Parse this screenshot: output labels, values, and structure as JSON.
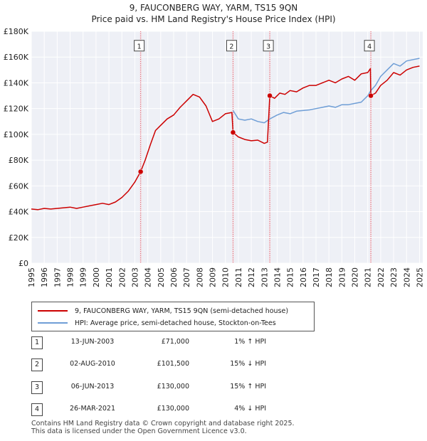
{
  "title_line1": "9, FAUCONBERG WAY, YARM, TS15 9QN",
  "title_line2": "Price paid vs. HM Land Registry's House Price Index (HPI)",
  "chart_data": {
    "type": "line",
    "title": "9, FAUCONBERG WAY, YARM, TS15 9QN — Price paid vs. HM Land Registry's House Price Index (HPI)",
    "xlabel": "",
    "ylabel": "",
    "xlim": [
      1995,
      2025.25
    ],
    "ylim": [
      0,
      180000
    ],
    "grid": true,
    "y_ticks": [
      {
        "value": 0,
        "label": "£0"
      },
      {
        "value": 20000,
        "label": "£20K"
      },
      {
        "value": 40000,
        "label": "£40K"
      },
      {
        "value": 60000,
        "label": "£60K"
      },
      {
        "value": 80000,
        "label": "£80K"
      },
      {
        "value": 100000,
        "label": "£100K"
      },
      {
        "value": 120000,
        "label": "£120K"
      },
      {
        "value": 140000,
        "label": "£140K"
      },
      {
        "value": 160000,
        "label": "£160K"
      },
      {
        "value": 180000,
        "label": "£180K"
      }
    ],
    "x_ticks": [
      "1995",
      "1996",
      "1997",
      "1998",
      "1999",
      "2000",
      "2001",
      "2002",
      "2003",
      "2004",
      "2005",
      "2006",
      "2007",
      "2008",
      "2009",
      "2010",
      "2011",
      "2012",
      "2013",
      "2014",
      "2015",
      "2016",
      "2017",
      "2018",
      "2019",
      "2020",
      "2021",
      "2022",
      "2023",
      "2024",
      "2025"
    ],
    "series": [
      {
        "name": "9, FAUCONBERG WAY, YARM, TS15 9QN (semi-detached house)",
        "color": "#cc0000",
        "points": [
          [
            1995.0,
            42000
          ],
          [
            1995.5,
            41500
          ],
          [
            1996.0,
            42500
          ],
          [
            1996.5,
            42000
          ],
          [
            1997.0,
            42500
          ],
          [
            1997.5,
            43000
          ],
          [
            1998.0,
            43500
          ],
          [
            1998.5,
            42500
          ],
          [
            1999.0,
            43500
          ],
          [
            1999.5,
            44500
          ],
          [
            2000.0,
            45500
          ],
          [
            2000.5,
            46500
          ],
          [
            2001.0,
            45500
          ],
          [
            2001.5,
            47500
          ],
          [
            2002.0,
            51000
          ],
          [
            2002.5,
            56000
          ],
          [
            2003.0,
            63000
          ],
          [
            2003.45,
            71000
          ],
          [
            2003.8,
            80000
          ],
          [
            2004.2,
            92000
          ],
          [
            2004.6,
            103000
          ],
          [
            2005.0,
            107000
          ],
          [
            2005.5,
            112000
          ],
          [
            2006.0,
            115000
          ],
          [
            2006.5,
            121000
          ],
          [
            2007.0,
            126000
          ],
          [
            2007.5,
            131000
          ],
          [
            2008.0,
            129000
          ],
          [
            2008.5,
            122000
          ],
          [
            2009.0,
            110000
          ],
          [
            2009.5,
            112000
          ],
          [
            2010.0,
            116000
          ],
          [
            2010.5,
            117000
          ],
          [
            2010.59,
            101500
          ],
          [
            2011.0,
            98000
          ],
          [
            2011.5,
            96000
          ],
          [
            2012.0,
            95000
          ],
          [
            2012.5,
            95500
          ],
          [
            2013.0,
            93000
          ],
          [
            2013.25,
            94000
          ],
          [
            2013.43,
            130000
          ],
          [
            2013.8,
            128000
          ],
          [
            2014.2,
            132000
          ],
          [
            2014.6,
            131000
          ],
          [
            2015.0,
            134000
          ],
          [
            2015.5,
            133000
          ],
          [
            2016.0,
            136000
          ],
          [
            2016.5,
            138000
          ],
          [
            2017.0,
            138000
          ],
          [
            2017.5,
            140000
          ],
          [
            2018.0,
            142000
          ],
          [
            2018.5,
            140000
          ],
          [
            2019.0,
            143000
          ],
          [
            2019.5,
            145000
          ],
          [
            2020.0,
            142000
          ],
          [
            2020.5,
            147000
          ],
          [
            2021.0,
            148000
          ],
          [
            2021.2,
            151000
          ],
          [
            2021.24,
            130000
          ],
          [
            2021.6,
            132000
          ],
          [
            2022.0,
            138000
          ],
          [
            2022.5,
            142000
          ],
          [
            2023.0,
            148000
          ],
          [
            2023.5,
            146000
          ],
          [
            2024.0,
            150000
          ],
          [
            2024.5,
            152000
          ],
          [
            2025.0,
            153000
          ]
        ]
      },
      {
        "name": "HPI: Average price, semi-detached house, Stockton-on-Tees",
        "color": "#6f9ed6",
        "points": [
          [
            2010.59,
            118500
          ],
          [
            2011.0,
            112000
          ],
          [
            2011.5,
            111000
          ],
          [
            2012.0,
            112000
          ],
          [
            2012.5,
            110000
          ],
          [
            2013.0,
            109000
          ],
          [
            2013.43,
            112000
          ],
          [
            2014.0,
            115000
          ],
          [
            2014.5,
            117000
          ],
          [
            2015.0,
            116000
          ],
          [
            2015.5,
            118000
          ],
          [
            2016.0,
            118500
          ],
          [
            2016.5,
            119000
          ],
          [
            2017.0,
            120000
          ],
          [
            2017.5,
            121000
          ],
          [
            2018.0,
            122000
          ],
          [
            2018.5,
            121000
          ],
          [
            2019.0,
            123000
          ],
          [
            2019.5,
            123000
          ],
          [
            2020.0,
            124000
          ],
          [
            2020.5,
            125000
          ],
          [
            2021.0,
            130000
          ],
          [
            2021.24,
            134000
          ],
          [
            2021.6,
            138000
          ],
          [
            2022.0,
            145000
          ],
          [
            2022.5,
            150000
          ],
          [
            2023.0,
            155000
          ],
          [
            2023.5,
            153000
          ],
          [
            2024.0,
            157000
          ],
          [
            2024.5,
            158000
          ],
          [
            2025.0,
            159000
          ]
        ]
      }
    ],
    "transactions": [
      {
        "num": "1",
        "x": 2003.45,
        "price": 71000
      },
      {
        "num": "2",
        "x": 2010.59,
        "price": 101500
      },
      {
        "num": "3",
        "x": 2013.43,
        "price": 130000
      },
      {
        "num": "4",
        "x": 2021.24,
        "price": 130000
      }
    ],
    "marker_label_y": 168000
  },
  "legend": {
    "items": [
      {
        "label": "9, FAUCONBERG WAY, YARM, TS15 9QN (semi-detached house)",
        "color": "#cc0000"
      },
      {
        "label": "HPI: Average price, semi-detached house, Stockton-on-Tees",
        "color": "#6f9ed6"
      }
    ]
  },
  "table": {
    "rows": [
      {
        "num": "1",
        "date": "13-JUN-2003",
        "price": "£71,000",
        "hpi": "1% ↑ HPI"
      },
      {
        "num": "2",
        "date": "02-AUG-2010",
        "price": "£101,500",
        "hpi": "15% ↓ HPI"
      },
      {
        "num": "3",
        "date": "06-JUN-2013",
        "price": "£130,000",
        "hpi": "15% ↑ HPI"
      },
      {
        "num": "4",
        "date": "26-MAR-2021",
        "price": "£130,000",
        "hpi": "4% ↓ HPI"
      }
    ]
  },
  "footer": {
    "line1": "Contains HM Land Registry data © Crown copyright and database right 2025.",
    "line2": "This data is licensed under the Open Government Licence v3.0."
  }
}
